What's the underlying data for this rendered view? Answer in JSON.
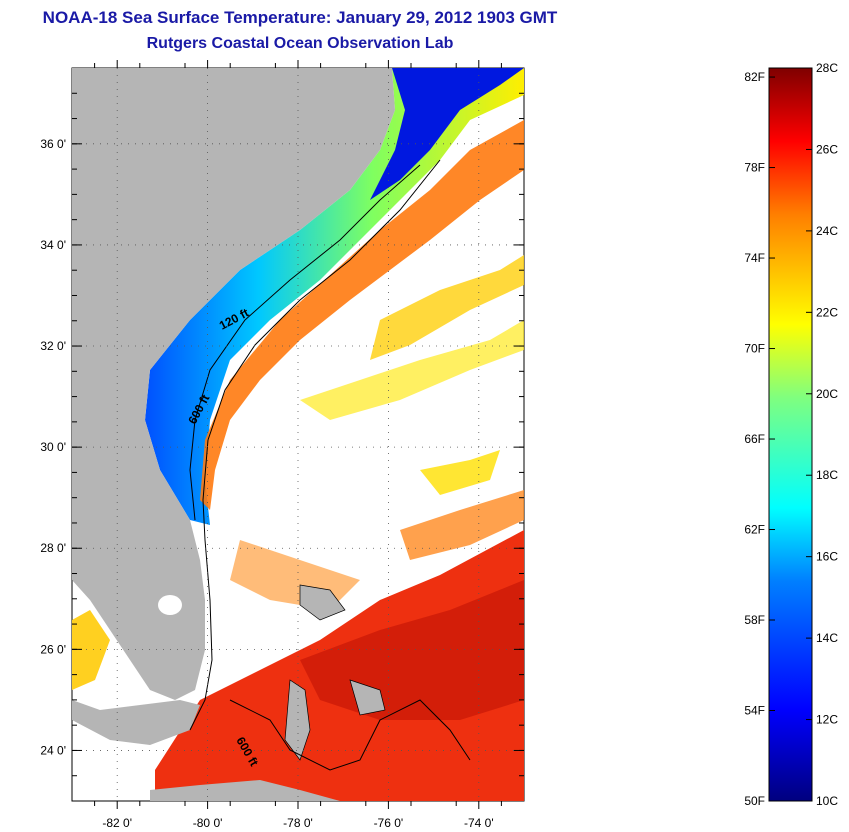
{
  "header": {
    "title": "NOAA-18 Sea Surface Temperature:  January 29, 2012 1903 GMT",
    "subtitle": "Rutgers Coastal Ocean Observation Lab"
  },
  "map": {
    "lat_labels": [
      "36 0'",
      "34 0'",
      "32 0'",
      "30 0'",
      "28 0'",
      "26 0'",
      "24 0'"
    ],
    "lon_labels": [
      "-82 0'",
      "-80 0'",
      "-78 0'",
      "-76 0'",
      "-74 0'"
    ],
    "lat_values": [
      36,
      34,
      32,
      30,
      28,
      26,
      24
    ],
    "lon_values": [
      -82,
      -80,
      -78,
      -76,
      -74
    ],
    "lat_range": [
      23,
      37.5
    ],
    "lon_range": [
      -83,
      -73
    ],
    "isobaths": [
      {
        "label": "120 ft"
      },
      {
        "label": "600 ft"
      },
      {
        "label": "600 ft"
      }
    ],
    "land_color": "#b5b5b5"
  },
  "colorbar": {
    "fahrenheit_labels": [
      "82F",
      "78F",
      "74F",
      "70F",
      "66F",
      "62F",
      "58F",
      "54F",
      "50F"
    ],
    "celsius_labels": [
      "28C",
      "26C",
      "24C",
      "22C",
      "20C",
      "18C",
      "16C",
      "14C",
      "12C",
      "10C"
    ],
    "celsius_range": [
      10,
      28
    ],
    "colors": [
      "#00007f",
      "#0000ff",
      "#007fff",
      "#00ffff",
      "#7fff7f",
      "#ffff00",
      "#ff7f00",
      "#ff0000",
      "#7f0000"
    ]
  }
}
